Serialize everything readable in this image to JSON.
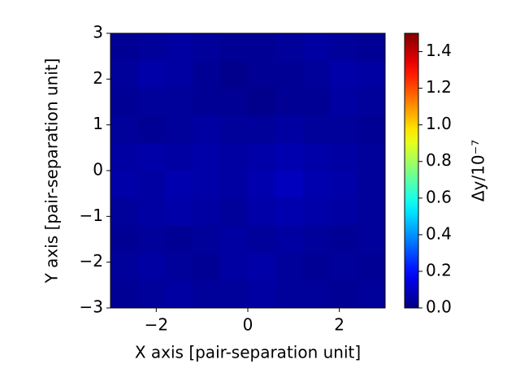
{
  "chart_data": {
    "type": "heatmap",
    "xlabel": "X axis [pair-separation unit]",
    "ylabel": "Y axis [pair-separation unit]",
    "xlim": [
      -3,
      3
    ],
    "ylim": [
      -3,
      3
    ],
    "xticks": [
      {
        "value": -2,
        "label": "−2"
      },
      0,
      2
    ],
    "yticks": [
      {
        "value": -3,
        "label": "−3"
      },
      {
        "value": -2,
        "label": "−2"
      },
      {
        "value": -1,
        "label": "−1"
      },
      0,
      1,
      2,
      3
    ],
    "colormap": "jet",
    "clim": [
      0,
      1.5
    ],
    "colorbar_label": "Δy/10⁻⁷",
    "colorbar_ticks": [
      {
        "value": 0,
        "label": "0.0"
      },
      {
        "value": 0.2,
        "label": "0.2"
      },
      {
        "value": 0.4,
        "label": "0.4"
      },
      {
        "value": 0.6,
        "label": "0.6"
      },
      {
        "value": 0.8,
        "label": "0.8"
      },
      {
        "value": 1.0,
        "label": "1.0"
      },
      {
        "value": 1.2,
        "label": "1.2"
      },
      {
        "value": 1.4,
        "label": "1.4"
      }
    ],
    "z": [
      [
        0.03,
        0.04,
        0.05,
        0.04,
        0.03,
        0.03,
        0.04,
        0.05,
        0.04,
        0.03
      ],
      [
        0.04,
        0.06,
        0.05,
        0.03,
        0.02,
        0.03,
        0.03,
        0.04,
        0.06,
        0.05
      ],
      [
        0.03,
        0.04,
        0.04,
        0.03,
        0.03,
        0.02,
        0.03,
        0.03,
        0.05,
        0.04
      ],
      [
        0.04,
        0.03,
        0.04,
        0.05,
        0.04,
        0.04,
        0.05,
        0.04,
        0.04,
        0.03
      ],
      [
        0.05,
        0.06,
        0.05,
        0.06,
        0.05,
        0.06,
        0.07,
        0.06,
        0.05,
        0.04
      ],
      [
        0.06,
        0.05,
        0.07,
        0.06,
        0.05,
        0.07,
        0.09,
        0.07,
        0.06,
        0.04
      ],
      [
        0.04,
        0.05,
        0.06,
        0.05,
        0.04,
        0.06,
        0.07,
        0.06,
        0.05,
        0.04
      ],
      [
        0.03,
        0.04,
        0.03,
        0.04,
        0.05,
        0.04,
        0.05,
        0.04,
        0.03,
        0.04
      ],
      [
        0.04,
        0.05,
        0.04,
        0.03,
        0.05,
        0.06,
        0.04,
        0.03,
        0.04,
        0.03
      ],
      [
        0.03,
        0.04,
        0.05,
        0.04,
        0.04,
        0.05,
        0.04,
        0.04,
        0.03,
        0.04
      ]
    ]
  }
}
